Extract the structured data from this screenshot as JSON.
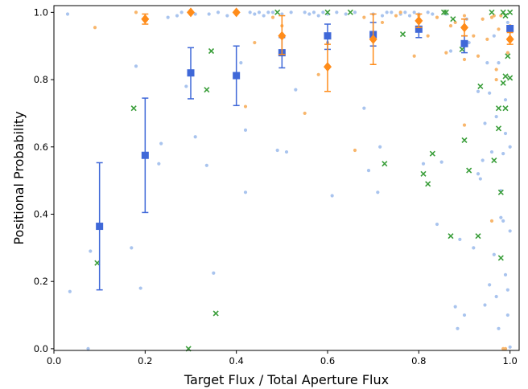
{
  "chart_data": {
    "type": "scatter",
    "xlabel": "Target Flux / Total Aperture Flux",
    "ylabel": "Positional Probability",
    "xlim": [
      0.0,
      1.02
    ],
    "ylim": [
      -0.005,
      1.02
    ],
    "x_ticks": [
      0.0,
      0.2,
      0.4,
      0.6,
      0.8,
      1.0
    ],
    "y_ticks": [
      0.0,
      0.2,
      0.4,
      0.6,
      0.8,
      1.0
    ],
    "x_tick_labels": [
      "0.0",
      "0.2",
      "0.4",
      "0.6",
      "0.8",
      "1.0"
    ],
    "y_tick_labels": [
      "0.0",
      "0.2",
      "0.4",
      "0.6",
      "0.8",
      "1.0"
    ],
    "grid": false,
    "legend": "none",
    "series": [
      {
        "marker": "dot",
        "color": "#a9c4ee",
        "points": [
          [
            0.03,
            0.995
          ],
          [
            0.035,
            0.17
          ],
          [
            0.075,
            0.0
          ],
          [
            0.08,
            0.29
          ],
          [
            0.17,
            0.3
          ],
          [
            0.18,
            0.84
          ],
          [
            0.19,
            0.18
          ],
          [
            0.23,
            0.55
          ],
          [
            0.235,
            0.61
          ],
          [
            0.25,
            0.985
          ],
          [
            0.27,
            0.99
          ],
          [
            0.28,
            1.0
          ],
          [
            0.29,
            0.78
          ],
          [
            0.31,
            0.995
          ],
          [
            0.31,
            0.63
          ],
          [
            0.335,
            0.545
          ],
          [
            0.34,
            0.995
          ],
          [
            0.35,
            0.225
          ],
          [
            0.36,
            1.0
          ],
          [
            0.38,
            0.99
          ],
          [
            0.41,
            0.85
          ],
          [
            0.42,
            0.65
          ],
          [
            0.42,
            0.465
          ],
          [
            0.43,
            1.0
          ],
          [
            0.44,
            0.995
          ],
          [
            0.45,
            1.0
          ],
          [
            0.46,
            0.99
          ],
          [
            0.47,
            1.0
          ],
          [
            0.48,
            1.0
          ],
          [
            0.49,
            0.59
          ],
          [
            0.5,
            0.995
          ],
          [
            0.51,
            0.585
          ],
          [
            0.52,
            1.0
          ],
          [
            0.53,
            0.77
          ],
          [
            0.55,
            1.0
          ],
          [
            0.56,
            0.995
          ],
          [
            0.57,
            1.0
          ],
          [
            0.58,
            0.99
          ],
          [
            0.59,
            1.0
          ],
          [
            0.6,
            0.995
          ],
          [
            0.61,
            0.455
          ],
          [
            0.62,
            1.0
          ],
          [
            0.64,
            0.995
          ],
          [
            0.66,
            1.0
          ],
          [
            0.68,
            0.715
          ],
          [
            0.69,
            0.53
          ],
          [
            0.7,
            0.995
          ],
          [
            0.71,
            0.465
          ],
          [
            0.715,
            0.6
          ],
          [
            0.72,
            0.99
          ],
          [
            0.73,
            1.0
          ],
          [
            0.74,
            1.0
          ],
          [
            0.76,
            0.995
          ],
          [
            0.77,
            1.0
          ],
          [
            0.78,
            0.99
          ],
          [
            0.79,
            1.0
          ],
          [
            0.8,
            0.995
          ],
          [
            0.81,
            0.55
          ],
          [
            0.82,
            1.0
          ],
          [
            0.83,
            0.995
          ],
          [
            0.84,
            0.37
          ],
          [
            0.85,
            0.555
          ],
          [
            0.86,
            0.995
          ],
          [
            0.87,
            0.885
          ],
          [
            0.88,
            0.125
          ],
          [
            0.885,
            0.06
          ],
          [
            0.89,
            0.325
          ],
          [
            0.9,
            0.1
          ],
          [
            0.905,
            0.98
          ],
          [
            0.91,
            0.91
          ],
          [
            0.92,
            0.3
          ],
          [
            0.93,
            0.765
          ],
          [
            0.935,
            0.505
          ],
          [
            0.94,
            0.56
          ],
          [
            0.945,
            0.13
          ],
          [
            0.95,
            0.85
          ],
          [
            0.955,
            0.19
          ],
          [
            0.96,
            0.585
          ],
          [
            0.965,
            0.28
          ],
          [
            0.97,
            0.69
          ],
          [
            0.975,
            0.06
          ],
          [
            0.98,
            0.47
          ],
          [
            0.985,
            0.38
          ],
          [
            0.99,
            0.74
          ],
          [
            0.99,
            0.22
          ],
          [
            0.995,
            0.97
          ],
          [
            0.995,
            0.1
          ],
          [
            1.0,
            0.6
          ],
          [
            1.0,
            0.35
          ],
          [
            1.0,
            0.005
          ],
          [
            0.995,
            0.175
          ],
          [
            0.975,
            0.85
          ],
          [
            0.965,
            0.93
          ],
          [
            0.955,
            0.76
          ],
          [
            0.945,
            0.67
          ],
          [
            0.93,
            0.52
          ],
          [
            0.99,
            0.64
          ],
          [
            0.98,
            0.39
          ],
          [
            0.97,
            0.155
          ],
          [
            0.985,
            0.58
          ]
        ]
      },
      {
        "marker": "dot",
        "color": "#f8b66c",
        "points": [
          [
            0.09,
            0.955
          ],
          [
            0.18,
            1.0
          ],
          [
            0.3,
            1.0
          ],
          [
            0.42,
            0.72
          ],
          [
            0.44,
            0.91
          ],
          [
            0.48,
            0.985
          ],
          [
            0.5,
            0.96
          ],
          [
            0.55,
            0.7
          ],
          [
            0.58,
            0.815
          ],
          [
            0.6,
            0.91
          ],
          [
            0.66,
            0.59
          ],
          [
            0.68,
            0.985
          ],
          [
            0.72,
            0.97
          ],
          [
            0.75,
            0.99
          ],
          [
            0.76,
            1.0
          ],
          [
            0.79,
            0.87
          ],
          [
            0.8,
            0.99
          ],
          [
            0.82,
            0.93
          ],
          [
            0.84,
            0.985
          ],
          [
            0.86,
            0.88
          ],
          [
            0.88,
            0.97
          ],
          [
            0.9,
            0.99
          ],
          [
            0.9,
            0.665
          ],
          [
            0.92,
            0.93
          ],
          [
            0.93,
            0.87
          ],
          [
            0.94,
            0.98
          ],
          [
            0.95,
            0.92
          ],
          [
            0.96,
            0.38
          ],
          [
            0.965,
            0.99
          ],
          [
            0.97,
            0.8
          ],
          [
            0.975,
            0.95
          ],
          [
            0.98,
            0.99
          ],
          [
            0.985,
            0.0
          ],
          [
            0.99,
            0.0
          ],
          [
            0.995,
            0.88
          ],
          [
            1.0,
            0.96
          ],
          [
            0.96,
            0.985
          ],
          [
            0.97,
            0.83
          ],
          [
            0.9,
            0.86
          ],
          [
            0.87,
            0.96
          ]
        ]
      },
      {
        "marker": "x",
        "color": "#3a9e3a",
        "points": [
          [
            0.095,
            0.255
          ],
          [
            0.175,
            0.715
          ],
          [
            0.295,
            0.0
          ],
          [
            0.335,
            0.77
          ],
          [
            0.345,
            0.885
          ],
          [
            0.355,
            0.105
          ],
          [
            0.49,
            1.0
          ],
          [
            0.6,
            1.0
          ],
          [
            0.65,
            1.0
          ],
          [
            0.725,
            0.55
          ],
          [
            0.765,
            0.935
          ],
          [
            0.81,
            0.52
          ],
          [
            0.82,
            0.49
          ],
          [
            0.83,
            0.58
          ],
          [
            0.855,
            1.0
          ],
          [
            0.86,
            1.0
          ],
          [
            0.875,
            0.98
          ],
          [
            0.87,
            0.335
          ],
          [
            0.895,
            0.89
          ],
          [
            0.9,
            0.62
          ],
          [
            0.91,
            0.53
          ],
          [
            0.93,
            0.335
          ],
          [
            0.935,
            0.78
          ],
          [
            0.96,
            1.0
          ],
          [
            0.965,
            0.56
          ],
          [
            0.975,
            0.655
          ],
          [
            0.975,
            0.715
          ],
          [
            0.98,
            0.465
          ],
          [
            0.98,
            0.27
          ],
          [
            0.985,
            0.79
          ],
          [
            0.99,
            0.715
          ],
          [
            0.99,
            0.81
          ],
          [
            0.995,
            0.87
          ],
          [
            1.0,
            0.805
          ],
          [
            1.0,
            1.0
          ],
          [
            0.985,
            1.0
          ],
          [
            0.99,
            0.99
          ]
        ]
      },
      {
        "marker": "square",
        "color": "#3f68d8",
        "points": [
          [
            0.1,
            0.364,
            0.175,
            0.553
          ],
          [
            0.2,
            0.575,
            0.405,
            0.745
          ],
          [
            0.3,
            0.82,
            0.743,
            0.895
          ],
          [
            0.4,
            0.812,
            0.723,
            0.9
          ],
          [
            0.5,
            0.88,
            0.835,
            0.925
          ],
          [
            0.6,
            0.93,
            0.89,
            0.965
          ],
          [
            0.7,
            0.934,
            0.9,
            0.97
          ],
          [
            0.8,
            0.95,
            0.925,
            0.975
          ],
          [
            0.9,
            0.907,
            0.88,
            0.93
          ],
          [
            1.0,
            0.952,
            0.952,
            0.952
          ]
        ]
      },
      {
        "marker": "diamond",
        "color": "#ff8c1a",
        "points": [
          [
            0.2,
            0.98,
            0.965,
            0.995
          ],
          [
            0.3,
            1.0,
            1.0,
            1.0
          ],
          [
            0.4,
            1.0,
            1.0,
            1.0
          ],
          [
            0.5,
            0.93,
            0.875,
            0.99
          ],
          [
            0.6,
            0.838,
            0.765,
            0.905
          ],
          [
            0.7,
            0.92,
            0.845,
            0.995
          ],
          [
            0.8,
            0.975,
            0.955,
            0.995
          ],
          [
            0.9,
            0.955,
            0.93,
            0.98
          ],
          [
            1.0,
            0.92,
            0.905,
            0.94
          ]
        ]
      }
    ]
  }
}
